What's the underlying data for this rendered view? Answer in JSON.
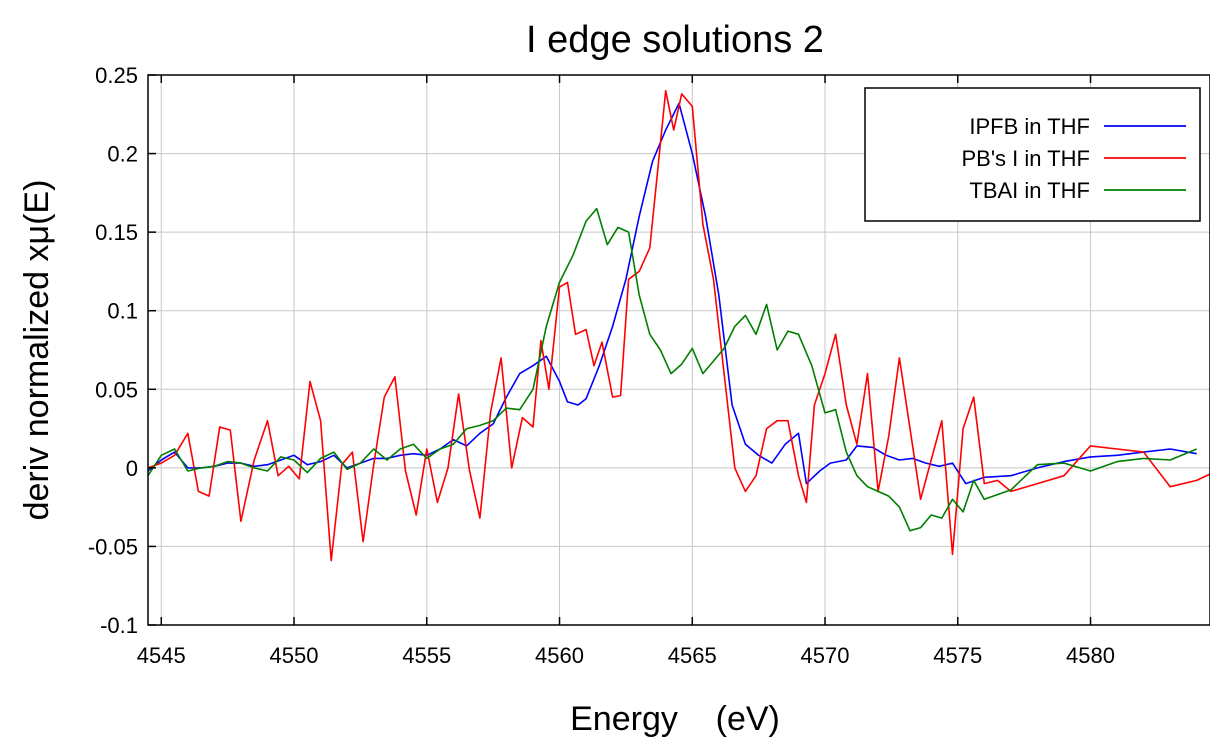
{
  "chart_data": {
    "type": "line",
    "title": "I edge solutions 2",
    "xlabel": "Energy    (eV)",
    "ylabel": "deriv normalized xμ(E)",
    "xlim": [
      4544.5,
      4584.5
    ],
    "ylim": [
      -0.1,
      0.25
    ],
    "x_ticks": [
      4545,
      4550,
      4555,
      4560,
      4565,
      4570,
      4575,
      4580
    ],
    "x_tick_labels": [
      "4545",
      "4550",
      "4555",
      "4560",
      "4565",
      "4570",
      "4575",
      "4580"
    ],
    "y_ticks": [
      -0.1,
      -0.05,
      0,
      0.05,
      0.1,
      0.15,
      0.2,
      0.25
    ],
    "y_tick_labels": [
      "-0.1",
      "-0.05",
      "0",
      "0.05",
      "0.1",
      "0.15",
      "0.2",
      "0.25"
    ],
    "grid": true,
    "legend_position": "top-right",
    "series": [
      {
        "name": "IPFB in THF",
        "color": "#0000ff",
        "points": [
          [
            4544.5,
            -0.002
          ],
          [
            4545.0,
            0.005
          ],
          [
            4545.5,
            0.01
          ],
          [
            4546.0,
            0.0
          ],
          [
            4546.5,
            0.0
          ],
          [
            4547.0,
            0.001
          ],
          [
            4547.5,
            0.003
          ],
          [
            4548.0,
            0.003
          ],
          [
            4548.5,
            0.001
          ],
          [
            4549.0,
            0.002
          ],
          [
            4549.5,
            0.005
          ],
          [
            4550.0,
            0.008
          ],
          [
            4550.5,
            0.002
          ],
          [
            4551.0,
            0.004
          ],
          [
            4551.5,
            0.008
          ],
          [
            4552.0,
            0.0
          ],
          [
            4552.5,
            0.003
          ],
          [
            4553.0,
            0.006
          ],
          [
            4553.5,
            0.006
          ],
          [
            4554.0,
            0.008
          ],
          [
            4554.5,
            0.009
          ],
          [
            4555.0,
            0.008
          ],
          [
            4555.5,
            0.012
          ],
          [
            4556.0,
            0.018
          ],
          [
            4556.5,
            0.014
          ],
          [
            4557.0,
            0.022
          ],
          [
            4557.5,
            0.028
          ],
          [
            4558.0,
            0.045
          ],
          [
            4558.5,
            0.06
          ],
          [
            4559.0,
            0.065
          ],
          [
            4559.5,
            0.071
          ],
          [
            4560.0,
            0.055
          ],
          [
            4560.3,
            0.042
          ],
          [
            4560.7,
            0.04
          ],
          [
            4561.0,
            0.044
          ],
          [
            4561.5,
            0.065
          ],
          [
            4562.0,
            0.09
          ],
          [
            4562.5,
            0.12
          ],
          [
            4563.0,
            0.16
          ],
          [
            4563.5,
            0.195
          ],
          [
            4564.0,
            0.215
          ],
          [
            4564.5,
            0.232
          ],
          [
            4565.0,
            0.2
          ],
          [
            4565.5,
            0.16
          ],
          [
            4566.0,
            0.11
          ],
          [
            4566.5,
            0.04
          ],
          [
            4567.0,
            0.015
          ],
          [
            4567.5,
            0.008
          ],
          [
            4568.0,
            0.003
          ],
          [
            4568.5,
            0.015
          ],
          [
            4569.0,
            0.022
          ],
          [
            4569.3,
            -0.01
          ],
          [
            4569.8,
            -0.002
          ],
          [
            4570.2,
            0.003
          ],
          [
            4570.8,
            0.005
          ],
          [
            4571.2,
            0.014
          ],
          [
            4571.8,
            0.013
          ],
          [
            4572.3,
            0.008
          ],
          [
            4572.8,
            0.005
          ],
          [
            4573.3,
            0.006
          ],
          [
            4573.8,
            0.003
          ],
          [
            4574.3,
            0.001
          ],
          [
            4574.8,
            0.003
          ],
          [
            4575.3,
            -0.01
          ],
          [
            4576.0,
            -0.006
          ],
          [
            4577.0,
            -0.005
          ],
          [
            4578.0,
            0.0
          ],
          [
            4579.0,
            0.004
          ],
          [
            4580.0,
            0.007
          ],
          [
            4581.0,
            0.008
          ],
          [
            4582.0,
            0.01
          ],
          [
            4583.0,
            0.012
          ],
          [
            4584.0,
            0.009
          ]
        ]
      },
      {
        "name": "PB's I in THF",
        "color": "#ff0000",
        "points": [
          [
            4544.5,
            0.0
          ],
          [
            4545.0,
            0.003
          ],
          [
            4545.5,
            0.008
          ],
          [
            4546.0,
            0.022
          ],
          [
            4546.4,
            -0.015
          ],
          [
            4546.8,
            -0.018
          ],
          [
            4547.2,
            0.026
          ],
          [
            4547.6,
            0.024
          ],
          [
            4548.0,
            -0.034
          ],
          [
            4548.5,
            0.005
          ],
          [
            4549.0,
            0.03
          ],
          [
            4549.4,
            -0.005
          ],
          [
            4549.8,
            0.001
          ],
          [
            4550.2,
            -0.007
          ],
          [
            4550.6,
            0.055
          ],
          [
            4551.0,
            0.03
          ],
          [
            4551.4,
            -0.059
          ],
          [
            4551.8,
            0.002
          ],
          [
            4552.2,
            0.01
          ],
          [
            4552.6,
            -0.047
          ],
          [
            4553.0,
            0.002
          ],
          [
            4553.4,
            0.045
          ],
          [
            4553.8,
            0.058
          ],
          [
            4554.2,
            -0.002
          ],
          [
            4554.6,
            -0.03
          ],
          [
            4555.0,
            0.012
          ],
          [
            4555.4,
            -0.022
          ],
          [
            4555.8,
            0.0
          ],
          [
            4556.2,
            0.047
          ],
          [
            4556.6,
            -0.001
          ],
          [
            4557.0,
            -0.032
          ],
          [
            4557.4,
            0.035
          ],
          [
            4557.8,
            0.07
          ],
          [
            4558.2,
            0.0
          ],
          [
            4558.6,
            0.032
          ],
          [
            4559.0,
            0.026
          ],
          [
            4559.3,
            0.081
          ],
          [
            4559.6,
            0.05
          ],
          [
            4560.0,
            0.115
          ],
          [
            4560.3,
            0.118
          ],
          [
            4560.6,
            0.085
          ],
          [
            4561.0,
            0.088
          ],
          [
            4561.3,
            0.065
          ],
          [
            4561.6,
            0.08
          ],
          [
            4562.0,
            0.045
          ],
          [
            4562.3,
            0.046
          ],
          [
            4562.6,
            0.12
          ],
          [
            4563.0,
            0.125
          ],
          [
            4563.4,
            0.14
          ],
          [
            4563.7,
            0.19
          ],
          [
            4564.0,
            0.24
          ],
          [
            4564.3,
            0.215
          ],
          [
            4564.6,
            0.238
          ],
          [
            4565.0,
            0.23
          ],
          [
            4565.4,
            0.155
          ],
          [
            4565.8,
            0.12
          ],
          [
            4566.2,
            0.06
          ],
          [
            4566.6,
            0.0
          ],
          [
            4567.0,
            -0.015
          ],
          [
            4567.4,
            -0.005
          ],
          [
            4567.8,
            0.025
          ],
          [
            4568.2,
            0.03
          ],
          [
            4568.6,
            0.03
          ],
          [
            4569.0,
            -0.005
          ],
          [
            4569.3,
            -0.022
          ],
          [
            4569.6,
            0.04
          ],
          [
            4570.0,
            0.06
          ],
          [
            4570.4,
            0.085
          ],
          [
            4570.8,
            0.04
          ],
          [
            4571.2,
            0.015
          ],
          [
            4571.6,
            0.06
          ],
          [
            4572.0,
            -0.015
          ],
          [
            4572.4,
            0.02
          ],
          [
            4572.8,
            0.07
          ],
          [
            4573.2,
            0.025
          ],
          [
            4573.6,
            -0.02
          ],
          [
            4574.0,
            0.005
          ],
          [
            4574.4,
            0.03
          ],
          [
            4574.8,
            -0.055
          ],
          [
            4575.2,
            0.025
          ],
          [
            4575.6,
            0.045
          ],
          [
            4576.0,
            -0.01
          ],
          [
            4576.5,
            -0.008
          ],
          [
            4577.0,
            -0.015
          ],
          [
            4578.0,
            -0.01
          ],
          [
            4579.0,
            -0.005
          ],
          [
            4580.0,
            0.014
          ],
          [
            4581.0,
            0.012
          ],
          [
            4582.0,
            0.01
          ],
          [
            4583.0,
            -0.012
          ],
          [
            4584.0,
            -0.008
          ],
          [
            4584.5,
            -0.004
          ]
        ]
      },
      {
        "name": "TBAI in THF",
        "color": "#007f00",
        "points": [
          [
            4544.5,
            -0.005
          ],
          [
            4545.0,
            0.008
          ],
          [
            4545.5,
            0.012
          ],
          [
            4546.0,
            -0.002
          ],
          [
            4546.5,
            0.0
          ],
          [
            4547.0,
            0.001
          ],
          [
            4547.5,
            0.004
          ],
          [
            4548.0,
            0.003
          ],
          [
            4548.5,
            0.0
          ],
          [
            4549.0,
            -0.002
          ],
          [
            4549.5,
            0.007
          ],
          [
            4550.0,
            0.005
          ],
          [
            4550.5,
            -0.003
          ],
          [
            4551.0,
            0.006
          ],
          [
            4551.5,
            0.01
          ],
          [
            4552.0,
            -0.001
          ],
          [
            4552.5,
            0.003
          ],
          [
            4553.0,
            0.012
          ],
          [
            4553.5,
            0.005
          ],
          [
            4554.0,
            0.012
          ],
          [
            4554.5,
            0.015
          ],
          [
            4555.0,
            0.006
          ],
          [
            4555.5,
            0.012
          ],
          [
            4556.0,
            0.015
          ],
          [
            4556.5,
            0.025
          ],
          [
            4557.0,
            0.027
          ],
          [
            4557.5,
            0.03
          ],
          [
            4558.0,
            0.038
          ],
          [
            4558.5,
            0.037
          ],
          [
            4559.0,
            0.05
          ],
          [
            4559.5,
            0.09
          ],
          [
            4560.0,
            0.118
          ],
          [
            4560.5,
            0.135
          ],
          [
            4561.0,
            0.157
          ],
          [
            4561.4,
            0.165
          ],
          [
            4561.8,
            0.142
          ],
          [
            4562.2,
            0.153
          ],
          [
            4562.6,
            0.15
          ],
          [
            4563.0,
            0.11
          ],
          [
            4563.4,
            0.085
          ],
          [
            4563.8,
            0.075
          ],
          [
            4564.2,
            0.06
          ],
          [
            4564.6,
            0.066
          ],
          [
            4565.0,
            0.076
          ],
          [
            4565.4,
            0.06
          ],
          [
            4565.8,
            0.068
          ],
          [
            4566.2,
            0.076
          ],
          [
            4566.6,
            0.09
          ],
          [
            4567.0,
            0.097
          ],
          [
            4567.4,
            0.085
          ],
          [
            4567.8,
            0.104
          ],
          [
            4568.2,
            0.075
          ],
          [
            4568.6,
            0.087
          ],
          [
            4569.0,
            0.085
          ],
          [
            4569.5,
            0.065
          ],
          [
            4570.0,
            0.035
          ],
          [
            4570.4,
            0.037
          ],
          [
            4570.8,
            0.01
          ],
          [
            4571.2,
            -0.005
          ],
          [
            4571.6,
            -0.012
          ],
          [
            4572.0,
            -0.015
          ],
          [
            4572.4,
            -0.018
          ],
          [
            4572.8,
            -0.025
          ],
          [
            4573.2,
            -0.04
          ],
          [
            4573.6,
            -0.038
          ],
          [
            4574.0,
            -0.03
          ],
          [
            4574.4,
            -0.032
          ],
          [
            4574.8,
            -0.02
          ],
          [
            4575.2,
            -0.028
          ],
          [
            4575.6,
            -0.008
          ],
          [
            4576.0,
            -0.02
          ],
          [
            4577.0,
            -0.014
          ],
          [
            4578.0,
            0.002
          ],
          [
            4579.0,
            0.003
          ],
          [
            4580.0,
            -0.002
          ],
          [
            4581.0,
            0.004
          ],
          [
            4582.0,
            0.006
          ],
          [
            4583.0,
            0.005
          ],
          [
            4584.0,
            0.012
          ]
        ]
      }
    ]
  }
}
